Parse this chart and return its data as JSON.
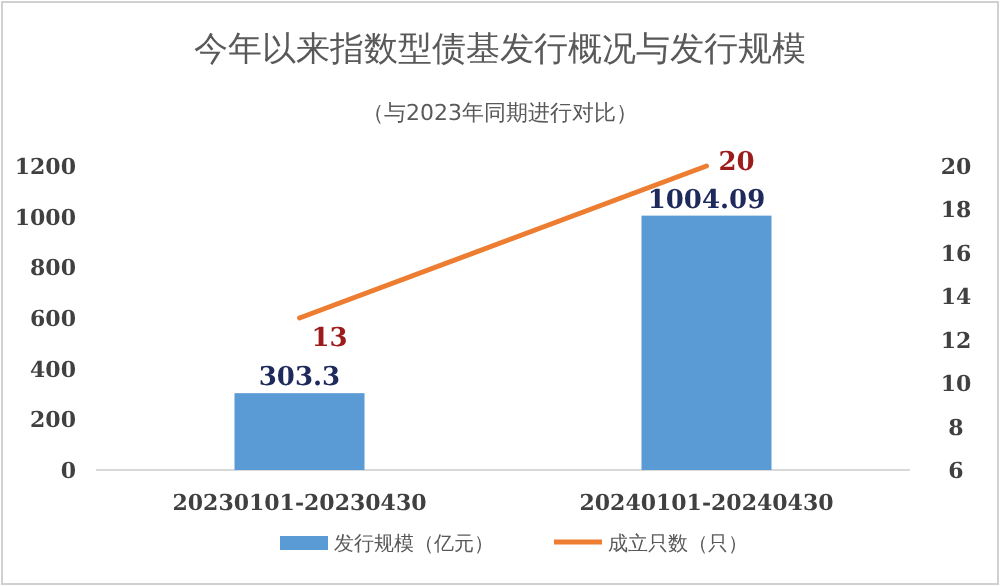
{
  "chart_data": {
    "type": "bar",
    "title": "今年以来指数型债基发行概况与发行规模",
    "subtitle": "（与2023年同期进行对比）",
    "categories": [
      "20230101-20230430",
      "20240101-20240430"
    ],
    "series": [
      {
        "name": "发行规模（亿元）",
        "color": "#5b9bd5",
        "values": [
          303.3,
          1004.09
        ]
      },
      {
        "name": "成立只数（只）",
        "type": "line",
        "axis": "y2",
        "color": "#ed7d31",
        "values": [
          13,
          20
        ]
      }
    ],
    "ylim": [
      0,
      1200
    ],
    "yticks": [
      0,
      200,
      400,
      600,
      800,
      1000,
      1200
    ],
    "y2lim": [
      6,
      20
    ],
    "y2ticks": [
      6,
      8,
      10,
      12,
      14,
      16,
      18,
      20
    ],
    "data_labels": true,
    "legend": "bottom",
    "grid": false
  }
}
